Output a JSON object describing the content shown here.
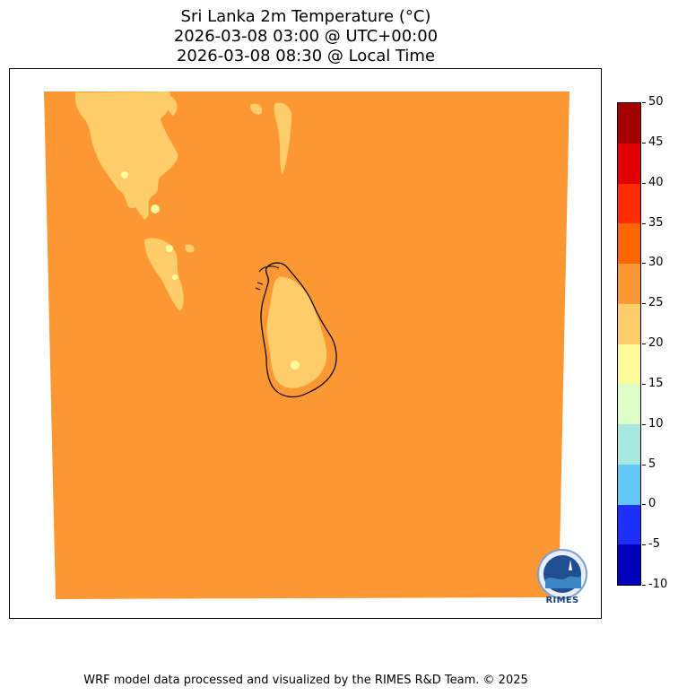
{
  "title": {
    "line1": "Sri Lanka 2m Temperature (°C)",
    "line2": "2026-03-08 03:00 @ UTC+00:00",
    "line3": "2026-03-08 08:30 @ Local Time"
  },
  "map": {
    "background_color": "#ffffff",
    "domain_fill_color": "#fb9833",
    "warm_patch_color": "#fdcd69",
    "light_patch_color": "#fdfa9b",
    "coastline_color": "#000000"
  },
  "colorbar": {
    "ticks": [
      "50",
      "45",
      "40",
      "35",
      "30",
      "25",
      "20",
      "15",
      "10",
      "5",
      "0",
      "-5",
      "-10"
    ],
    "colors_top_to_bottom": [
      "#a50000",
      "#e00000",
      "#ff2c00",
      "#ff6600",
      "#fb9833",
      "#fdcd69",
      "#fdfa9b",
      "#ddfcc6",
      "#a7e9df",
      "#63c8f5",
      "#1c30f9",
      "#0000bb"
    ]
  },
  "logo": {
    "name": "RIMES",
    "icon": "rimes-logo-icon"
  },
  "footer": {
    "text": "WRF model data processed and visualized by the RIMES R&D Team. © 2025"
  }
}
